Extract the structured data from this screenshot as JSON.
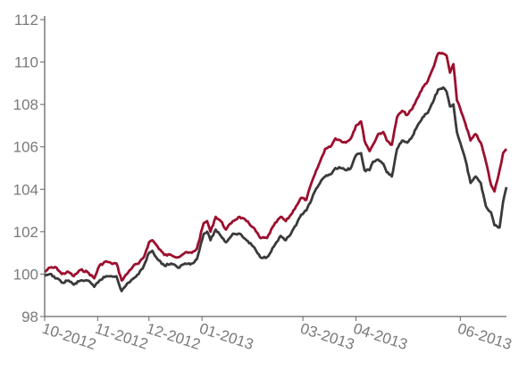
{
  "chart_data": {
    "type": "line",
    "title": "",
    "xlabel": "",
    "ylabel": "",
    "ylim": [
      98,
      112
    ],
    "yticks": [
      "98",
      "100",
      "102",
      "104",
      "106",
      "108",
      "110",
      "112"
    ],
    "xlim": [
      "2012-10-01",
      "2013-06-28"
    ],
    "xticks": [
      {
        "date": "2012-10-01",
        "label": "10-2012"
      },
      {
        "date": "2012-11-01",
        "label": "11-2012"
      },
      {
        "date": "2012-12-01",
        "label": "12-2012"
      },
      {
        "date": "2013-01-01",
        "label": "01-2013"
      },
      {
        "date": "2013-03-01",
        "label": "03-2013"
      },
      {
        "date": "2013-04-01",
        "label": "04-2013"
      },
      {
        "date": "2013-06-01",
        "label": "06-2013"
      }
    ],
    "grid": false,
    "legend": "none",
    "series": [
      {
        "color": "#9c0f2e",
        "points": [
          [
            "2012-10-01",
            100.1
          ],
          [
            "2012-10-04",
            100.3
          ],
          [
            "2012-10-08",
            100.3
          ],
          [
            "2012-10-11",
            100.0
          ],
          [
            "2012-10-15",
            100.1
          ],
          [
            "2012-10-18",
            99.9
          ],
          [
            "2012-10-22",
            100.2
          ],
          [
            "2012-10-26",
            100.1
          ],
          [
            "2012-10-30",
            99.8
          ],
          [
            "2012-11-02",
            100.4
          ],
          [
            "2012-11-06",
            100.6
          ],
          [
            "2012-11-09",
            100.5
          ],
          [
            "2012-11-12",
            100.5
          ],
          [
            "2012-11-15",
            99.7
          ],
          [
            "2012-11-19",
            100.1
          ],
          [
            "2012-11-22",
            100.4
          ],
          [
            "2012-11-25",
            100.5
          ],
          [
            "2012-11-28",
            100.8
          ],
          [
            "2012-12-01",
            101.5
          ],
          [
            "2012-12-03",
            101.6
          ],
          [
            "2012-12-06",
            101.3
          ],
          [
            "2012-12-10",
            100.9
          ],
          [
            "2012-12-14",
            100.9
          ],
          [
            "2012-12-18",
            100.8
          ],
          [
            "2012-12-22",
            101.0
          ],
          [
            "2012-12-26",
            101.0
          ],
          [
            "2012-12-29",
            101.2
          ],
          [
            "2013-01-02",
            102.4
          ],
          [
            "2013-01-04",
            102.5
          ],
          [
            "2013-01-06",
            102.0
          ],
          [
            "2013-01-09",
            102.7
          ],
          [
            "2013-01-12",
            102.5
          ],
          [
            "2013-01-15",
            102.1
          ],
          [
            "2013-01-19",
            102.5
          ],
          [
            "2013-01-23",
            102.7
          ],
          [
            "2013-01-27",
            102.5
          ],
          [
            "2013-01-31",
            102.2
          ],
          [
            "2013-02-04",
            101.7
          ],
          [
            "2013-02-08",
            101.7
          ],
          [
            "2013-02-12",
            102.3
          ],
          [
            "2013-02-16",
            102.7
          ],
          [
            "2013-02-19",
            102.5
          ],
          [
            "2013-02-22",
            102.8
          ],
          [
            "2013-02-25",
            103.2
          ],
          [
            "2013-02-28",
            103.6
          ],
          [
            "2013-03-03",
            103.5
          ],
          [
            "2013-03-06",
            104.3
          ],
          [
            "2013-03-08",
            104.7
          ],
          [
            "2013-03-11",
            105.3
          ],
          [
            "2013-03-14",
            105.9
          ],
          [
            "2013-03-17",
            106.0
          ],
          [
            "2013-03-20",
            106.4
          ],
          [
            "2013-03-23",
            106.3
          ],
          [
            "2013-03-26",
            106.2
          ],
          [
            "2013-03-29",
            106.4
          ],
          [
            "2013-04-01",
            107.0
          ],
          [
            "2013-04-04",
            107.2
          ],
          [
            "2013-04-06",
            106.3
          ],
          [
            "2013-04-09",
            105.8
          ],
          [
            "2013-04-11",
            106.1
          ],
          [
            "2013-04-14",
            106.6
          ],
          [
            "2013-04-17",
            106.7
          ],
          [
            "2013-04-19",
            106.3
          ],
          [
            "2013-04-22",
            106.1
          ],
          [
            "2013-04-25",
            107.4
          ],
          [
            "2013-04-28",
            107.7
          ],
          [
            "2013-05-01",
            107.5
          ],
          [
            "2013-05-04",
            107.8
          ],
          [
            "2013-05-07",
            108.3
          ],
          [
            "2013-05-10",
            108.8
          ],
          [
            "2013-05-13",
            109.1
          ],
          [
            "2013-05-16",
            109.7
          ],
          [
            "2013-05-19",
            110.4
          ],
          [
            "2013-05-22",
            110.4
          ],
          [
            "2013-05-24",
            110.3
          ],
          [
            "2013-05-26",
            109.5
          ],
          [
            "2013-05-28",
            109.9
          ],
          [
            "2013-05-30",
            108.2
          ],
          [
            "2013-06-01",
            107.8
          ],
          [
            "2013-06-04",
            107.1
          ],
          [
            "2013-06-07",
            106.3
          ],
          [
            "2013-06-10",
            106.6
          ],
          [
            "2013-06-13",
            106.2
          ],
          [
            "2013-06-16",
            105.3
          ],
          [
            "2013-06-19",
            104.2
          ],
          [
            "2013-06-21",
            103.9
          ],
          [
            "2013-06-24",
            104.9
          ],
          [
            "2013-06-26",
            105.7
          ],
          [
            "2013-06-28",
            105.9
          ]
        ]
      },
      {
        "color": "#3a3a3a",
        "points": [
          [
            "2012-10-01",
            99.9
          ],
          [
            "2012-10-04",
            100.0
          ],
          [
            "2012-10-08",
            99.8
          ],
          [
            "2012-10-11",
            99.6
          ],
          [
            "2012-10-15",
            99.7
          ],
          [
            "2012-10-18",
            99.5
          ],
          [
            "2012-10-22",
            99.7
          ],
          [
            "2012-10-26",
            99.7
          ],
          [
            "2012-10-30",
            99.4
          ],
          [
            "2012-11-02",
            99.7
          ],
          [
            "2012-11-06",
            99.9
          ],
          [
            "2012-11-09",
            99.9
          ],
          [
            "2012-11-12",
            99.9
          ],
          [
            "2012-11-15",
            99.2
          ],
          [
            "2012-11-19",
            99.6
          ],
          [
            "2012-11-22",
            99.8
          ],
          [
            "2012-11-25",
            100.0
          ],
          [
            "2012-11-28",
            100.4
          ],
          [
            "2012-12-01",
            101.0
          ],
          [
            "2012-12-03",
            101.1
          ],
          [
            "2012-12-06",
            100.7
          ],
          [
            "2012-12-10",
            100.4
          ],
          [
            "2012-12-14",
            100.5
          ],
          [
            "2012-12-18",
            100.3
          ],
          [
            "2012-12-22",
            100.5
          ],
          [
            "2012-12-26",
            100.5
          ],
          [
            "2012-12-29",
            100.7
          ],
          [
            "2013-01-02",
            101.9
          ],
          [
            "2013-01-04",
            102.0
          ],
          [
            "2013-01-06",
            101.6
          ],
          [
            "2013-01-09",
            102.1
          ],
          [
            "2013-01-12",
            101.8
          ],
          [
            "2013-01-15",
            101.5
          ],
          [
            "2013-01-19",
            101.9
          ],
          [
            "2013-01-23",
            101.9
          ],
          [
            "2013-01-27",
            101.6
          ],
          [
            "2013-01-31",
            101.3
          ],
          [
            "2013-02-04",
            100.8
          ],
          [
            "2013-02-08",
            100.8
          ],
          [
            "2013-02-12",
            101.3
          ],
          [
            "2013-02-16",
            101.8
          ],
          [
            "2013-02-19",
            101.6
          ],
          [
            "2013-02-22",
            101.9
          ],
          [
            "2013-02-25",
            102.3
          ],
          [
            "2013-02-28",
            102.8
          ],
          [
            "2013-03-03",
            103.0
          ],
          [
            "2013-03-06",
            103.5
          ],
          [
            "2013-03-08",
            103.9
          ],
          [
            "2013-03-11",
            104.3
          ],
          [
            "2013-03-14",
            104.6
          ],
          [
            "2013-03-17",
            104.7
          ],
          [
            "2013-03-20",
            105.0
          ],
          [
            "2013-03-23",
            105.0
          ],
          [
            "2013-03-26",
            104.9
          ],
          [
            "2013-03-29",
            105.0
          ],
          [
            "2013-04-01",
            105.6
          ],
          [
            "2013-04-04",
            105.7
          ],
          [
            "2013-04-06",
            104.9
          ],
          [
            "2013-04-09",
            104.9
          ],
          [
            "2013-04-11",
            105.3
          ],
          [
            "2013-04-14",
            105.4
          ],
          [
            "2013-04-17",
            105.2
          ],
          [
            "2013-04-19",
            104.8
          ],
          [
            "2013-04-22",
            104.6
          ],
          [
            "2013-04-25",
            105.9
          ],
          [
            "2013-04-28",
            106.3
          ],
          [
            "2013-05-01",
            106.2
          ],
          [
            "2013-05-04",
            106.5
          ],
          [
            "2013-05-07",
            107.0
          ],
          [
            "2013-05-10",
            107.4
          ],
          [
            "2013-05-13",
            107.6
          ],
          [
            "2013-05-16",
            108.1
          ],
          [
            "2013-05-19",
            108.7
          ],
          [
            "2013-05-22",
            108.8
          ],
          [
            "2013-05-24",
            108.6
          ],
          [
            "2013-05-26",
            107.9
          ],
          [
            "2013-05-28",
            108.0
          ],
          [
            "2013-05-30",
            106.7
          ],
          [
            "2013-06-01",
            106.2
          ],
          [
            "2013-06-04",
            105.4
          ],
          [
            "2013-06-07",
            104.3
          ],
          [
            "2013-06-10",
            104.6
          ],
          [
            "2013-06-13",
            104.3
          ],
          [
            "2013-06-16",
            103.2
          ],
          [
            "2013-06-19",
            102.9
          ],
          [
            "2013-06-21",
            102.3
          ],
          [
            "2013-06-24",
            102.2
          ],
          [
            "2013-06-26",
            103.4
          ],
          [
            "2013-06-28",
            104.1
          ]
        ]
      }
    ]
  }
}
